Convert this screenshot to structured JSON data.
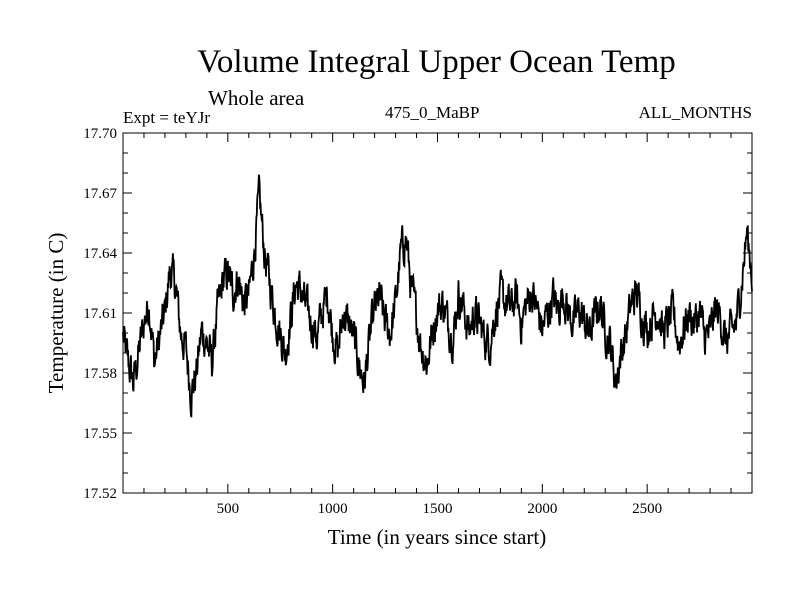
{
  "chart_data": {
    "type": "line",
    "title": "Volume Integral Upper Ocean Temp",
    "subtitle": "Whole area",
    "annotations": {
      "experiment": "Expt = teYJr",
      "period": "475_0_MaBP",
      "months": "ALL_MONTHS"
    },
    "xlabel": "Time (in years since start)",
    "ylabel": "Temperature (in C)",
    "xlim": [
      0,
      3000
    ],
    "ylim": [
      17.52,
      17.7
    ],
    "x_ticks": [
      500,
      1000,
      1500,
      2000,
      2500
    ],
    "y_ticks": [
      17.52,
      17.55,
      17.58,
      17.61,
      17.64,
      17.67,
      17.7
    ],
    "y_tick_labels": [
      "17.52",
      "17.55",
      "17.58",
      "17.61",
      "17.64",
      "17.67",
      "17.70"
    ],
    "grid": false,
    "series": [
      {
        "name": "Volume integral upper ocean temperature",
        "x": [
          0,
          25,
          50,
          75,
          100,
          125,
          150,
          175,
          200,
          225,
          250,
          275,
          300,
          325,
          350,
          375,
          400,
          425,
          450,
          475,
          500,
          525,
          550,
          575,
          600,
          625,
          650,
          675,
          700,
          725,
          750,
          775,
          800,
          825,
          850,
          875,
          900,
          925,
          950,
          975,
          1000,
          1025,
          1050,
          1075,
          1100,
          1125,
          1150,
          1175,
          1200,
          1225,
          1250,
          1275,
          1300,
          1325,
          1350,
          1375,
          1400,
          1425,
          1450,
          1475,
          1500,
          1525,
          1550,
          1575,
          1600,
          1625,
          1650,
          1675,
          1700,
          1725,
          1750,
          1775,
          1800,
          1825,
          1850,
          1875,
          1900,
          1925,
          1950,
          1975,
          2000,
          2025,
          2050,
          2075,
          2100,
          2125,
          2150,
          2175,
          2200,
          2225,
          2250,
          2275,
          2300,
          2325,
          2350,
          2375,
          2400,
          2425,
          2450,
          2475,
          2500,
          2525,
          2550,
          2575,
          2600,
          2625,
          2650,
          2675,
          2700,
          2725,
          2750,
          2775,
          2800,
          2825,
          2850,
          2875,
          2900,
          2925,
          2950,
          2975,
          3000
        ],
        "values": [
          17.598,
          17.585,
          17.575,
          17.59,
          17.605,
          17.615,
          17.585,
          17.598,
          17.61,
          17.632,
          17.624,
          17.6,
          17.592,
          17.57,
          17.58,
          17.601,
          17.595,
          17.585,
          17.61,
          17.625,
          17.63,
          17.62,
          17.628,
          17.615,
          17.618,
          17.64,
          17.668,
          17.64,
          17.625,
          17.61,
          17.6,
          17.59,
          17.608,
          17.625,
          17.62,
          17.612,
          17.605,
          17.598,
          17.61,
          17.62,
          17.6,
          17.59,
          17.61,
          17.605,
          17.598,
          17.585,
          17.575,
          17.595,
          17.612,
          17.618,
          17.605,
          17.6,
          17.615,
          17.64,
          17.648,
          17.622,
          17.608,
          17.592,
          17.585,
          17.6,
          17.612,
          17.615,
          17.605,
          17.598,
          17.62,
          17.612,
          17.6,
          17.61,
          17.605,
          17.598,
          17.595,
          17.61,
          17.618,
          17.615,
          17.612,
          17.618,
          17.605,
          17.615,
          17.62,
          17.612,
          17.602,
          17.61,
          17.618,
          17.612,
          17.62,
          17.61,
          17.605,
          17.612,
          17.605,
          17.6,
          17.608,
          17.615,
          17.602,
          17.595,
          17.575,
          17.59,
          17.6,
          17.615,
          17.62,
          17.61,
          17.602,
          17.608,
          17.612,
          17.6,
          17.605,
          17.61,
          17.595,
          17.602,
          17.61,
          17.605,
          17.61,
          17.598,
          17.6,
          17.612,
          17.608,
          17.595,
          17.6,
          17.605,
          17.625,
          17.65,
          17.63
        ],
        "color": "#000000"
      }
    ]
  }
}
